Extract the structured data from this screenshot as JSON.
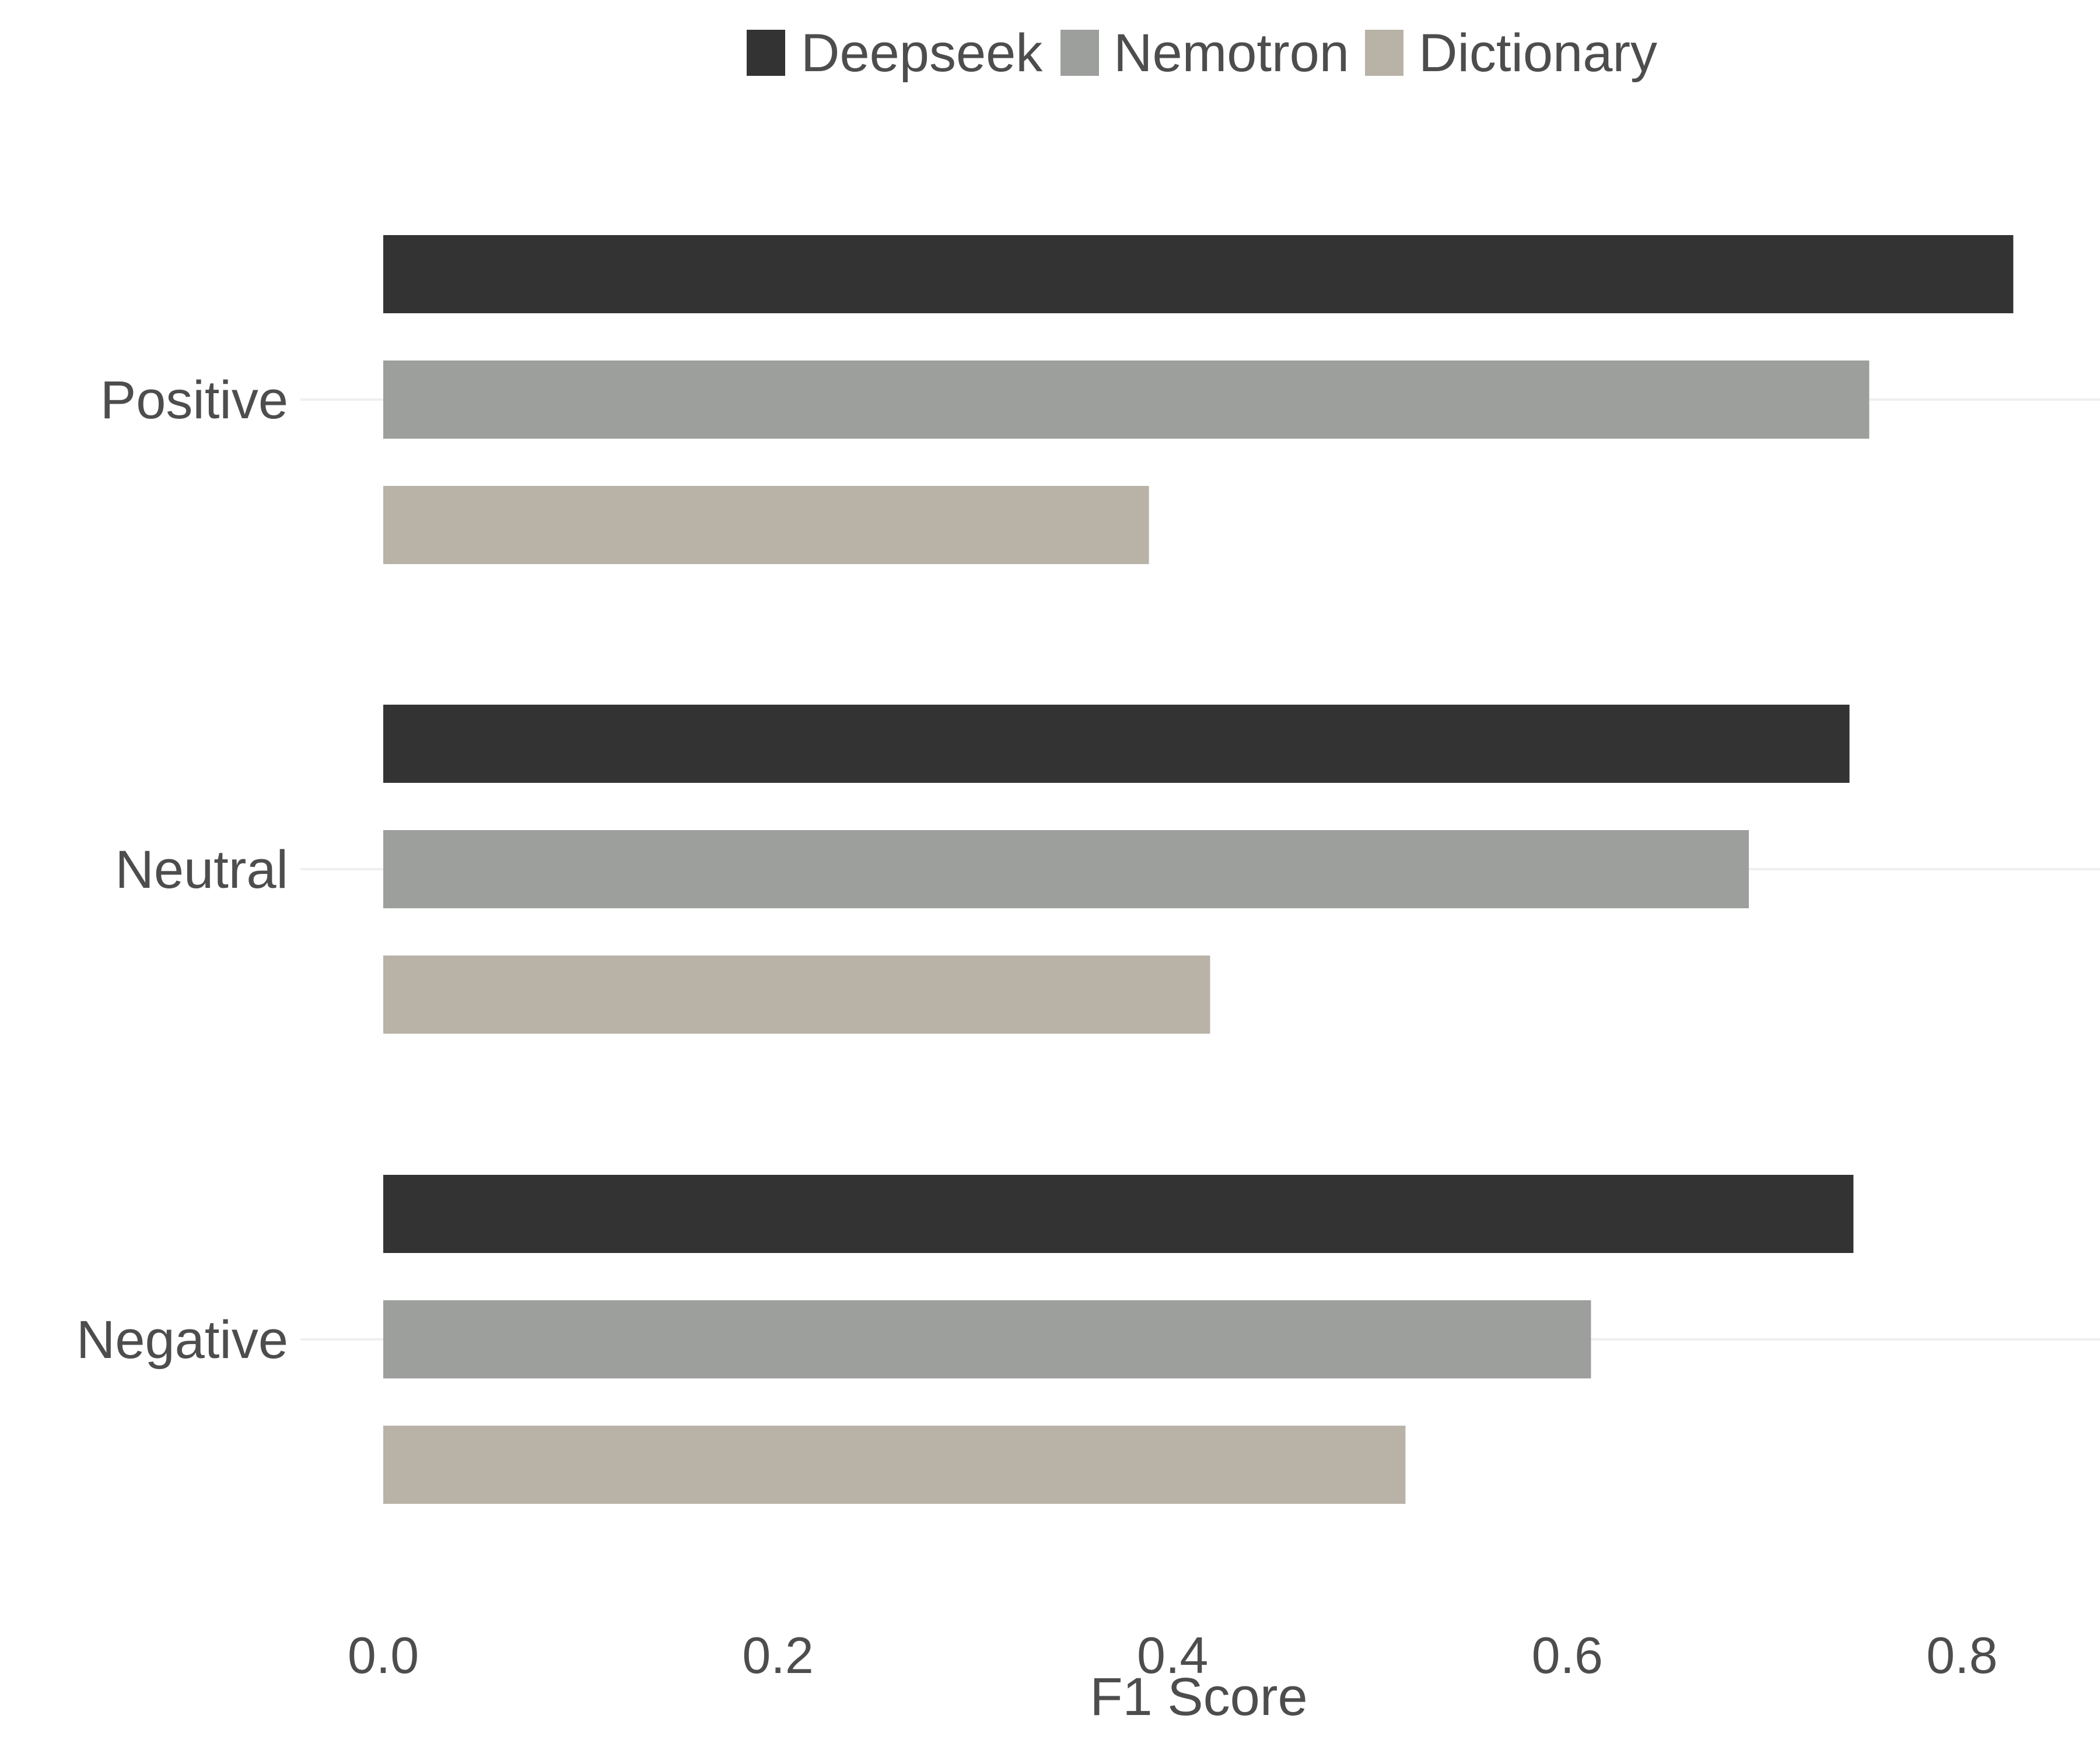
{
  "chart_data": {
    "type": "bar",
    "orientation": "horizontal",
    "categories": [
      "Positive",
      "Neutral",
      "Negative"
    ],
    "series": [
      {
        "name": "Deepseek",
        "color": "#333333",
        "values": [
          0.826,
          0.743,
          0.745
        ]
      },
      {
        "name": "Nemotron",
        "color": "#9d9f9c",
        "values": [
          0.753,
          0.692,
          0.612
        ]
      },
      {
        "name": "Dictionary",
        "color": "#b9b2a7",
        "values": [
          0.388,
          0.419,
          0.518
        ]
      }
    ],
    "xlabel": "F1 Score",
    "ylabel": "",
    "xlim": [
      0,
      0.87
    ],
    "xticks": [
      0.0,
      0.2,
      0.4,
      0.6,
      0.8
    ],
    "xtick_labels": [
      "0.0",
      "0.2",
      "0.4",
      "0.6",
      "0.8"
    ],
    "grid": "horizontal-major-only",
    "legend_position": "top"
  }
}
